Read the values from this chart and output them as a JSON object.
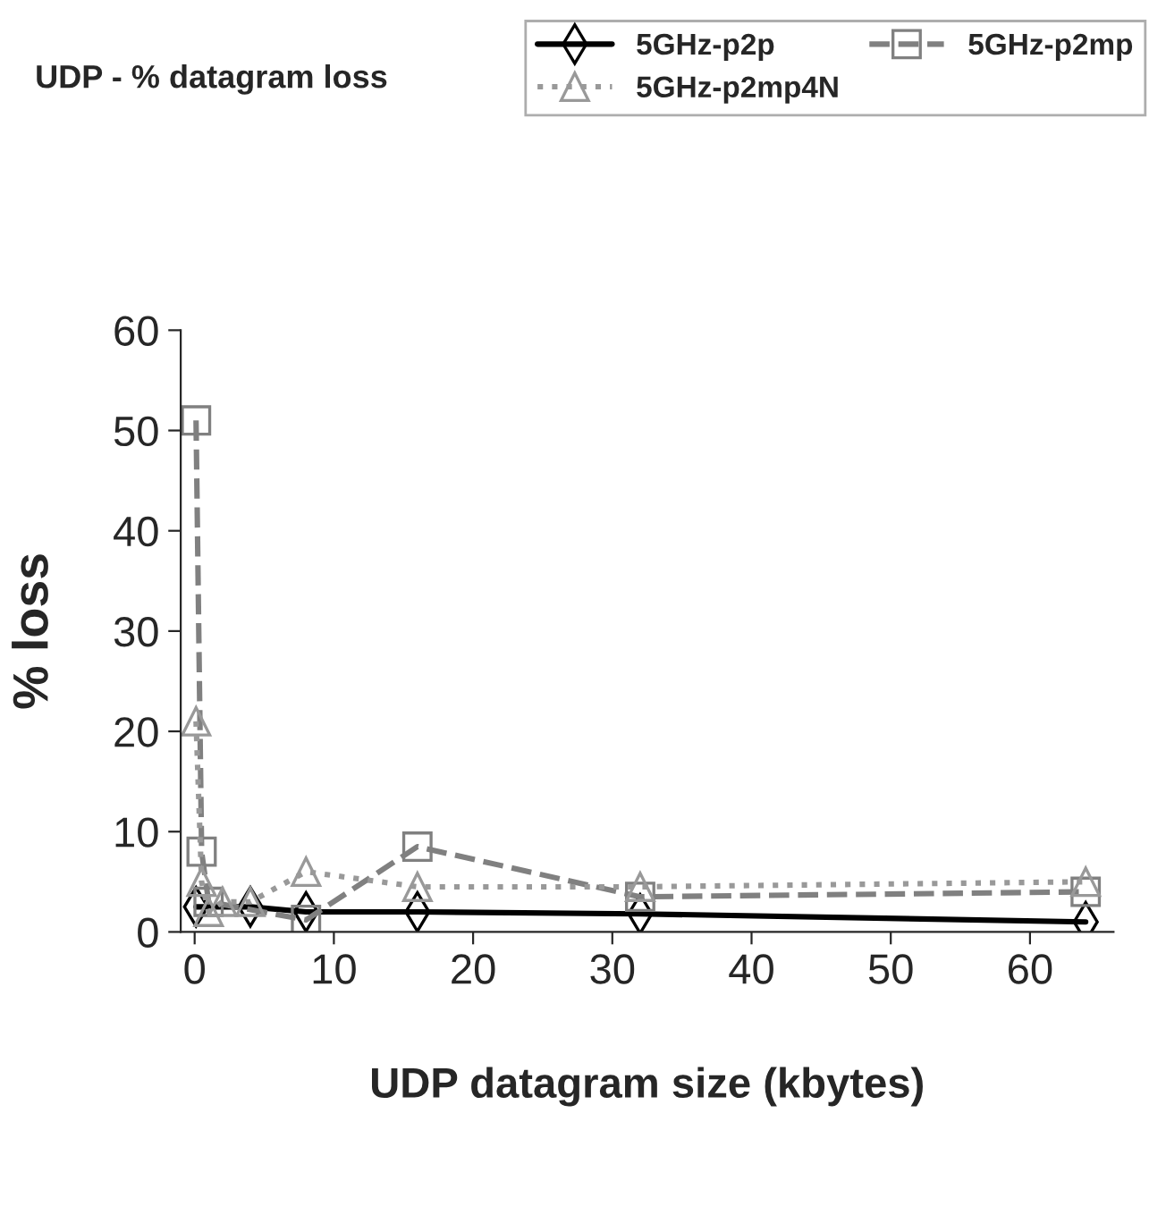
{
  "chart_data": {
    "type": "line",
    "title": "UDP - % datagram loss",
    "xlabel": "UDP datagram size (kbytes)",
    "ylabel": "% loss",
    "xlim": [
      -1,
      66
    ],
    "xticks": [
      0,
      10,
      20,
      30,
      40,
      50,
      60
    ],
    "ylim": [
      0,
      60
    ],
    "yticks": [
      0,
      10,
      20,
      30,
      40,
      50,
      60
    ],
    "grid": false,
    "legend": "top right",
    "series": [
      {
        "name": "5GHz-p2p",
        "color": "#000000",
        "marker": "diamond",
        "line_style": "solid",
        "x": [
          0.1,
          0.5,
          1,
          2,
          4,
          8,
          16,
          32,
          64
        ],
        "values": [
          2.5,
          null,
          null,
          null,
          2.5,
          2,
          2,
          1.8,
          1
        ]
      },
      {
        "name": "5GHz-p2mp",
        "color": "#808080",
        "marker": "square",
        "line_style": "dashed",
        "x": [
          0.1,
          0.5,
          1,
          2,
          4,
          8,
          16,
          32,
          64
        ],
        "values": [
          51,
          8,
          3,
          null,
          null,
          1.2,
          8.5,
          3.5,
          4
        ]
      },
      {
        "name": "5GHz-p2mp4N",
        "color": "#999999",
        "marker": "triangle",
        "line_style": "dotted",
        "x": [
          0.1,
          0.5,
          1,
          2,
          4,
          8,
          16,
          32,
          64
        ],
        "values": [
          21,
          5,
          2,
          3,
          3,
          6,
          4.5,
          4.5,
          5
        ]
      }
    ]
  }
}
